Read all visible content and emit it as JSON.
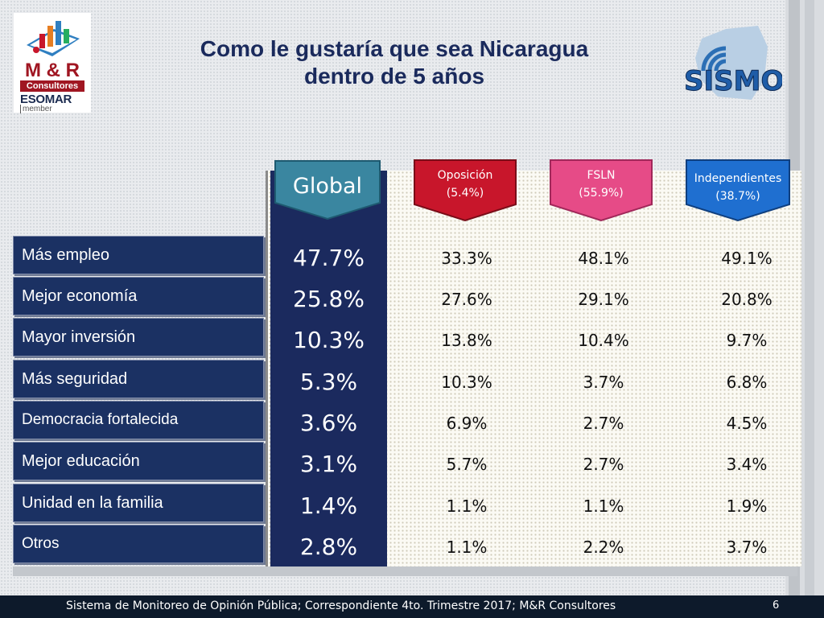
{
  "title_line1": "Como le gustaría que sea Nicaragua",
  "title_line2": "dentro de 5 años",
  "logo_left": {
    "brand": "M & R",
    "sub": "Consultores",
    "esomar": "ESOMAR",
    "member": "member"
  },
  "logo_right": {
    "text": "SISMO"
  },
  "footer": {
    "text": "Sistema de Monitoreo de Opinión Pública; Correspondiente 4to. Trimestre 2017; M&R Consultores",
    "page": "6"
  },
  "colors": {
    "navy": "#1b2a5e",
    "oposicion": "#c8162b",
    "fsln": "#e64b87",
    "independientes": "#1f6fd0",
    "global_badge": "#3a86a0"
  },
  "chart_data": {
    "type": "table",
    "columns": [
      {
        "key": "global",
        "name": "Global",
        "sub": ""
      },
      {
        "key": "oposicion",
        "name": "Oposición",
        "sub": "(5.4%)"
      },
      {
        "key": "fsln",
        "name": "FSLN",
        "sub": "(55.9%)"
      },
      {
        "key": "independientes",
        "name": "Independientes",
        "sub": "(38.7%)"
      }
    ],
    "rows": [
      {
        "label": "Más empleo",
        "global": "47.7%",
        "oposicion": "33.3%",
        "fsln": "48.1%",
        "independientes": "49.1%"
      },
      {
        "label": "Mejor economía",
        "global": "25.8%",
        "oposicion": "27.6%",
        "fsln": "29.1%",
        "independientes": "20.8%"
      },
      {
        "label": "Mayor inversión",
        "global": "10.3%",
        "oposicion": "13.8%",
        "fsln": "10.4%",
        "independientes": "9.7%"
      },
      {
        "label": "Más seguridad",
        "global": "5.3%",
        "oposicion": "10.3%",
        "fsln": "3.7%",
        "independientes": "6.8%"
      },
      {
        "label": "Democracia fortalecida",
        "global": "3.6%",
        "oposicion": "6.9%",
        "fsln": "2.7%",
        "independientes": "4.5%"
      },
      {
        "label": "Mejor educación",
        "global": "3.1%",
        "oposicion": "5.7%",
        "fsln": "2.7%",
        "independientes": "3.4%"
      },
      {
        "label": "Unidad en la familia",
        "global": "1.4%",
        "oposicion": "1.1%",
        "fsln": "1.1%",
        "independientes": "1.9%"
      },
      {
        "label": "Otros",
        "global": "2.8%",
        "oposicion": "1.1%",
        "fsln": "2.2%",
        "independientes": "3.7%"
      }
    ]
  }
}
